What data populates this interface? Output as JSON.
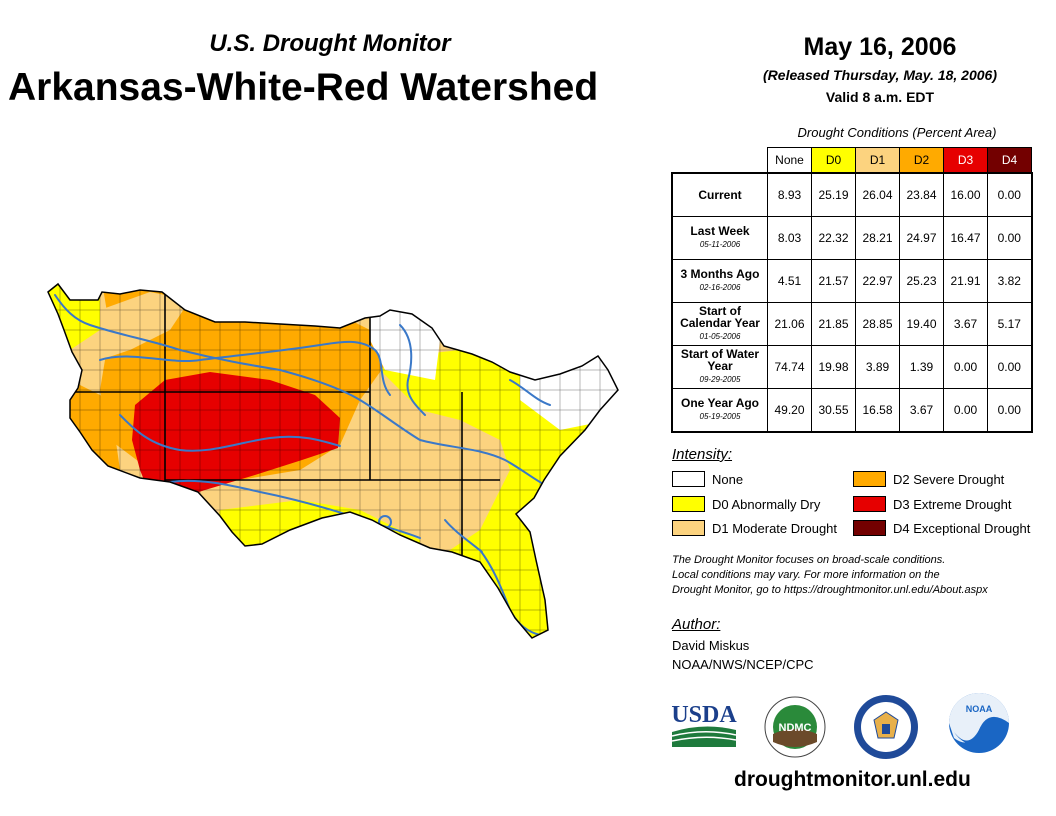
{
  "header": {
    "subtitle": "U.S. Drought Monitor",
    "title": "Arkansas-White-Red Watershed",
    "date": "May 16, 2006",
    "released": "(Released Thursday, May. 18, 2006)",
    "valid": "Valid 8 a.m. EDT"
  },
  "table": {
    "caption": "Drought Conditions (Percent Area)",
    "columns": [
      "None",
      "D0",
      "D1",
      "D2",
      "D3",
      "D4"
    ],
    "column_colors": [
      "#ffffff",
      "#ffff00",
      "#fcd37f",
      "#ffaa00",
      "#e60000",
      "#730000"
    ],
    "rows": [
      {
        "label": "Current",
        "date": "",
        "values": [
          "8.93",
          "25.19",
          "26.04",
          "23.84",
          "16.00",
          "0.00"
        ]
      },
      {
        "label": "Last Week",
        "date": "05-11-2006",
        "values": [
          "8.03",
          "22.32",
          "28.21",
          "24.97",
          "16.47",
          "0.00"
        ]
      },
      {
        "label": "3 Months Ago",
        "date": "02-16-2006",
        "values": [
          "4.51",
          "21.57",
          "22.97",
          "25.23",
          "21.91",
          "3.82"
        ]
      },
      {
        "label": "Start of Calendar Year",
        "date": "01-05-2006",
        "values": [
          "21.06",
          "21.85",
          "28.85",
          "19.40",
          "3.67",
          "5.17"
        ]
      },
      {
        "label": "Start of Water Year",
        "date": "09-29-2005",
        "values": [
          "74.74",
          "19.98",
          "3.89",
          "1.39",
          "0.00",
          "0.00"
        ]
      },
      {
        "label": "One Year Ago",
        "date": "05-19-2005",
        "values": [
          "49.20",
          "30.55",
          "16.58",
          "3.67",
          "0.00",
          "0.00"
        ]
      }
    ]
  },
  "legend": {
    "title": "Intensity:",
    "items": [
      {
        "label": "None",
        "color": "#ffffff"
      },
      {
        "label": "D0 Abnormally Dry",
        "color": "#ffff00"
      },
      {
        "label": "D1 Moderate Drought",
        "color": "#fcd37f"
      },
      {
        "label": "D2 Severe Drought",
        "color": "#ffaa00"
      },
      {
        "label": "D3 Extreme Drought",
        "color": "#e60000"
      },
      {
        "label": "D4 Exceptional Drought",
        "color": "#730000"
      }
    ]
  },
  "note": {
    "line1": "The Drought Monitor focuses on broad-scale conditions.",
    "line2": "Local conditions may vary. For more information on the",
    "line3": "Drought Monitor, go to https://droughtmonitor.unl.edu/About.aspx"
  },
  "author": {
    "title": "Author:",
    "name": "David Miskus",
    "org": "NOAA/NWS/NCEP/CPC"
  },
  "logos": {
    "usda": "USDA",
    "ndmc": "NDMC",
    "noaa": "NOAA"
  },
  "footer": {
    "site": "droughtmonitor.unl.edu"
  }
}
